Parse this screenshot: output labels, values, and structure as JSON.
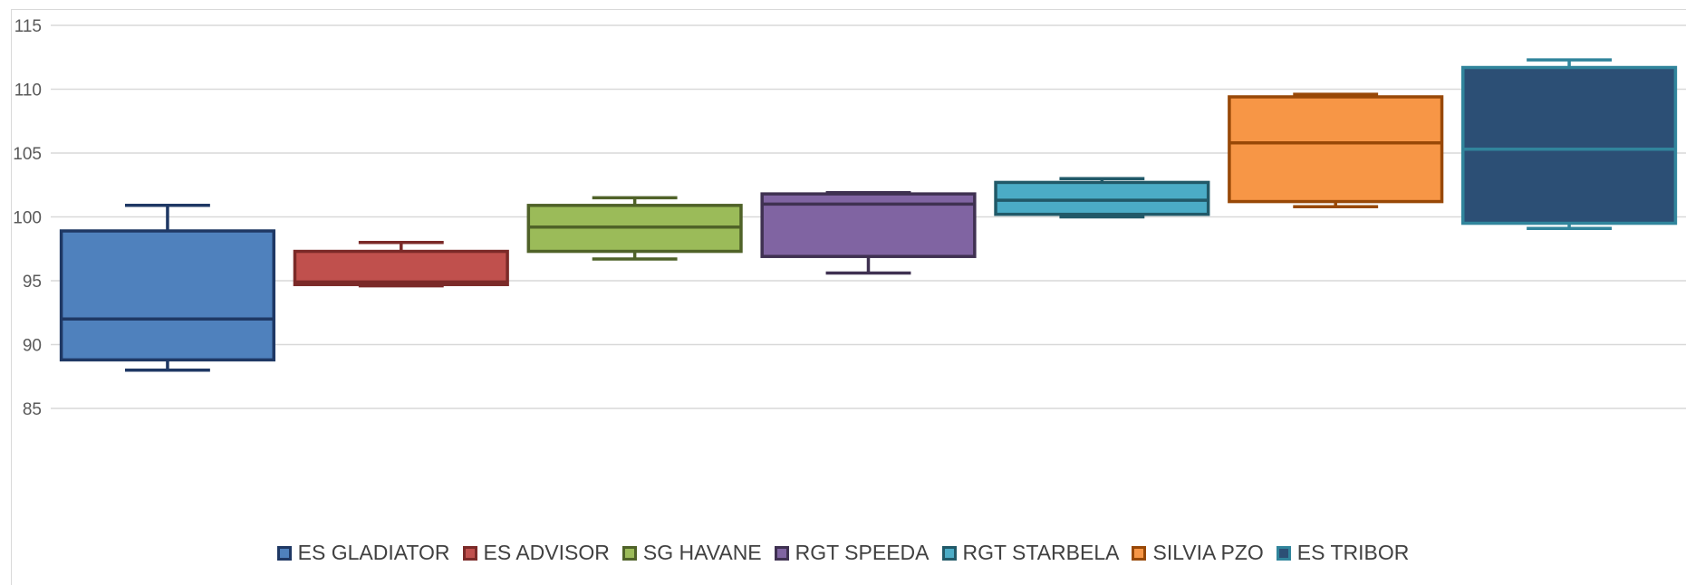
{
  "chart_data": {
    "type": "boxplot",
    "title": "",
    "xlabel": "",
    "ylabel": "",
    "ylim": [
      85,
      115
    ],
    "yticks": [
      85,
      90,
      95,
      100,
      105,
      110,
      115
    ],
    "grid": true,
    "legend_position": "bottom",
    "series": [
      {
        "name": "ES GLADIATOR",
        "min": 88.0,
        "q1": 88.8,
        "median": 92.0,
        "q3": 98.9,
        "max": 100.9,
        "fill": "#4f81bd",
        "stroke": "#1f3864"
      },
      {
        "name": "ES ADVISOR",
        "min": 94.6,
        "q1": 94.7,
        "median": 94.9,
        "q3": 97.3,
        "max": 98.0,
        "fill": "#c0504d",
        "stroke": "#7b2a28"
      },
      {
        "name": "SG HAVANE",
        "min": 96.7,
        "q1": 97.3,
        "median": 99.2,
        "q3": 100.9,
        "max": 101.5,
        "fill": "#9bbb59",
        "stroke": "#4f6228"
      },
      {
        "name": "RGT SPEEDA",
        "min": 95.6,
        "q1": 96.9,
        "median": 101.0,
        "q3": 101.8,
        "max": 101.9,
        "fill": "#8064a2",
        "stroke": "#3f3151"
      },
      {
        "name": "RGT STARBELA",
        "min": 100.0,
        "q1": 100.2,
        "median": 101.3,
        "q3": 102.7,
        "max": 103.0,
        "fill": "#4bacc6",
        "stroke": "#215968"
      },
      {
        "name": "SILVIA PZO",
        "min": 100.8,
        "q1": 101.2,
        "median": 105.8,
        "q3": 109.4,
        "max": 109.6,
        "fill": "#f79646",
        "stroke": "#984807"
      },
      {
        "name": "ES TRIBOR",
        "min": 99.1,
        "q1": 99.5,
        "median": 105.3,
        "q3": 111.7,
        "max": 112.3,
        "fill": "#2c4f75",
        "stroke": "#31859c"
      }
    ]
  }
}
